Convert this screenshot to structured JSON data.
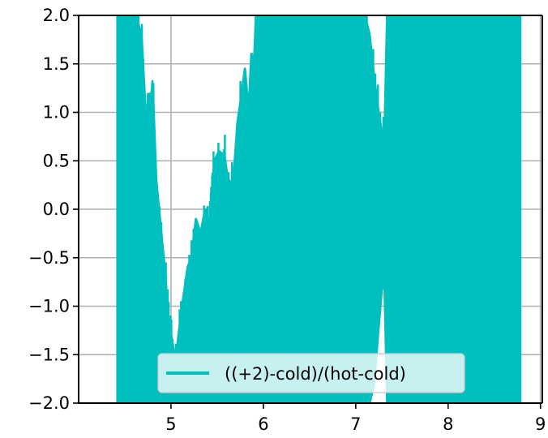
{
  "chart_data": {
    "type": "line",
    "title": "",
    "xlabel": "",
    "ylabel": "",
    "xlim": [
      4.0,
      9.02
    ],
    "ylim": [
      -2.0,
      2.0
    ],
    "x_ticks": [
      5,
      6,
      7,
      8,
      9
    ],
    "y_ticks": [
      -2.0,
      -1.5,
      -1.0,
      -0.5,
      0.0,
      0.5,
      1.0,
      1.5,
      2.0
    ],
    "x_tick_labels": [
      "5",
      "6",
      "7",
      "8",
      "9"
    ],
    "y_tick_labels": [
      "−2.0",
      "−1.5",
      "−1.0",
      "−0.5",
      "0.0",
      "0.5",
      "1.0",
      "1.5",
      "2.0"
    ],
    "grid": true,
    "legend_position": "lower-center",
    "series": [
      {
        "name": "((+2)-cold)/(hot-cold)",
        "color": "#00bfbf",
        "x_range": [
          4.42,
          8.78
        ],
        "envelope": {
          "x": [
            4.42,
            4.55,
            4.62,
            4.68,
            4.72,
            4.76,
            4.8,
            4.84,
            4.88,
            4.93,
            4.98,
            5.05,
            5.12,
            5.18,
            5.22,
            5.27,
            5.32,
            5.37,
            5.42,
            5.47,
            5.52,
            5.58,
            5.63,
            5.68,
            5.72,
            5.76,
            5.8,
            5.84,
            5.87,
            5.89,
            5.92,
            6.0,
            6.2,
            6.4,
            6.6,
            6.8,
            7.0,
            7.1,
            7.15,
            7.2,
            7.24,
            7.28,
            7.31,
            7.34,
            7.4,
            7.6,
            7.8,
            8.0,
            8.2,
            8.4,
            8.6,
            8.78
          ],
          "upper": [
            2.0,
            2.0,
            2.0,
            1.8,
            1.1,
            0.9,
            1.3,
            0.3,
            -0.1,
            -0.6,
            -1.2,
            -1.55,
            -1.0,
            -0.6,
            -0.5,
            -0.1,
            -0.25,
            0.0,
            -0.15,
            0.5,
            0.6,
            0.55,
            0.2,
            0.35,
            0.9,
            1.15,
            1.45,
            1.0,
            1.6,
            1.3,
            2.0,
            2.0,
            2.0,
            2.0,
            2.0,
            2.0,
            2.0,
            2.0,
            1.8,
            1.35,
            1.05,
            0.8,
            0.7,
            2.0,
            2.0,
            2.0,
            2.0,
            2.0,
            2.0,
            2.0,
            2.0,
            2.0
          ],
          "lower": [
            -2.0,
            -2.0,
            -2.0,
            -2.0,
            -2.0,
            -2.0,
            -2.0,
            -2.0,
            -2.0,
            -2.0,
            -2.0,
            -2.0,
            -2.0,
            -2.0,
            -2.0,
            -2.0,
            -2.0,
            -2.0,
            -2.0,
            -2.0,
            -2.0,
            -2.0,
            -2.0,
            -2.0,
            -2.0,
            -2.0,
            -2.0,
            -2.0,
            -2.0,
            -2.0,
            -2.0,
            -2.0,
            -2.0,
            -2.0,
            -2.0,
            -2.0,
            -2.0,
            -2.0,
            -2.0,
            -1.8,
            -1.3,
            -0.85,
            -0.7,
            -2.0,
            -2.0,
            -2.0,
            -2.0,
            -2.0,
            -2.0,
            -2.0,
            -2.0,
            -2.0
          ]
        }
      }
    ]
  }
}
